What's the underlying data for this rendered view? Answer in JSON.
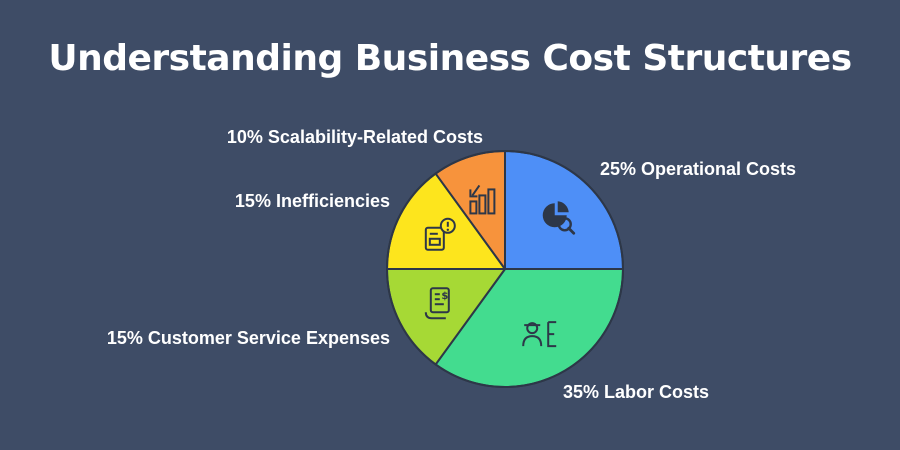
{
  "title": "Understanding Business Cost Structures",
  "chart_data": {
    "type": "pie",
    "title": "Understanding Business Cost Structures",
    "slices": [
      {
        "label": "Operational Costs",
        "display": "25% Operational Costs",
        "value": 25,
        "color": "#4e8ff7",
        "icon": "pie-magnifier-icon"
      },
      {
        "label": "Labor Costs",
        "display": "35% Labor Costs",
        "value": 35,
        "color": "#43dc8f",
        "icon": "worker-icon"
      },
      {
        "label": "Customer Service Expenses",
        "display": "15% Customer Service Expenses",
        "value": 15,
        "color": "#a6d935",
        "icon": "invoice-icon"
      },
      {
        "label": "Inefficiencies",
        "display": "15% Inefficiencies",
        "value": 15,
        "color": "#fde51d",
        "icon": "document-alert-icon"
      },
      {
        "label": "Scalability-Related Costs",
        "display": "10% Scalability-Related Costs",
        "value": 10,
        "color": "#f7933c",
        "icon": "bar-growth-icon"
      }
    ],
    "start_angle_deg": 0,
    "direction": "clockwise-from-top",
    "legend": "labels beside slices"
  }
}
